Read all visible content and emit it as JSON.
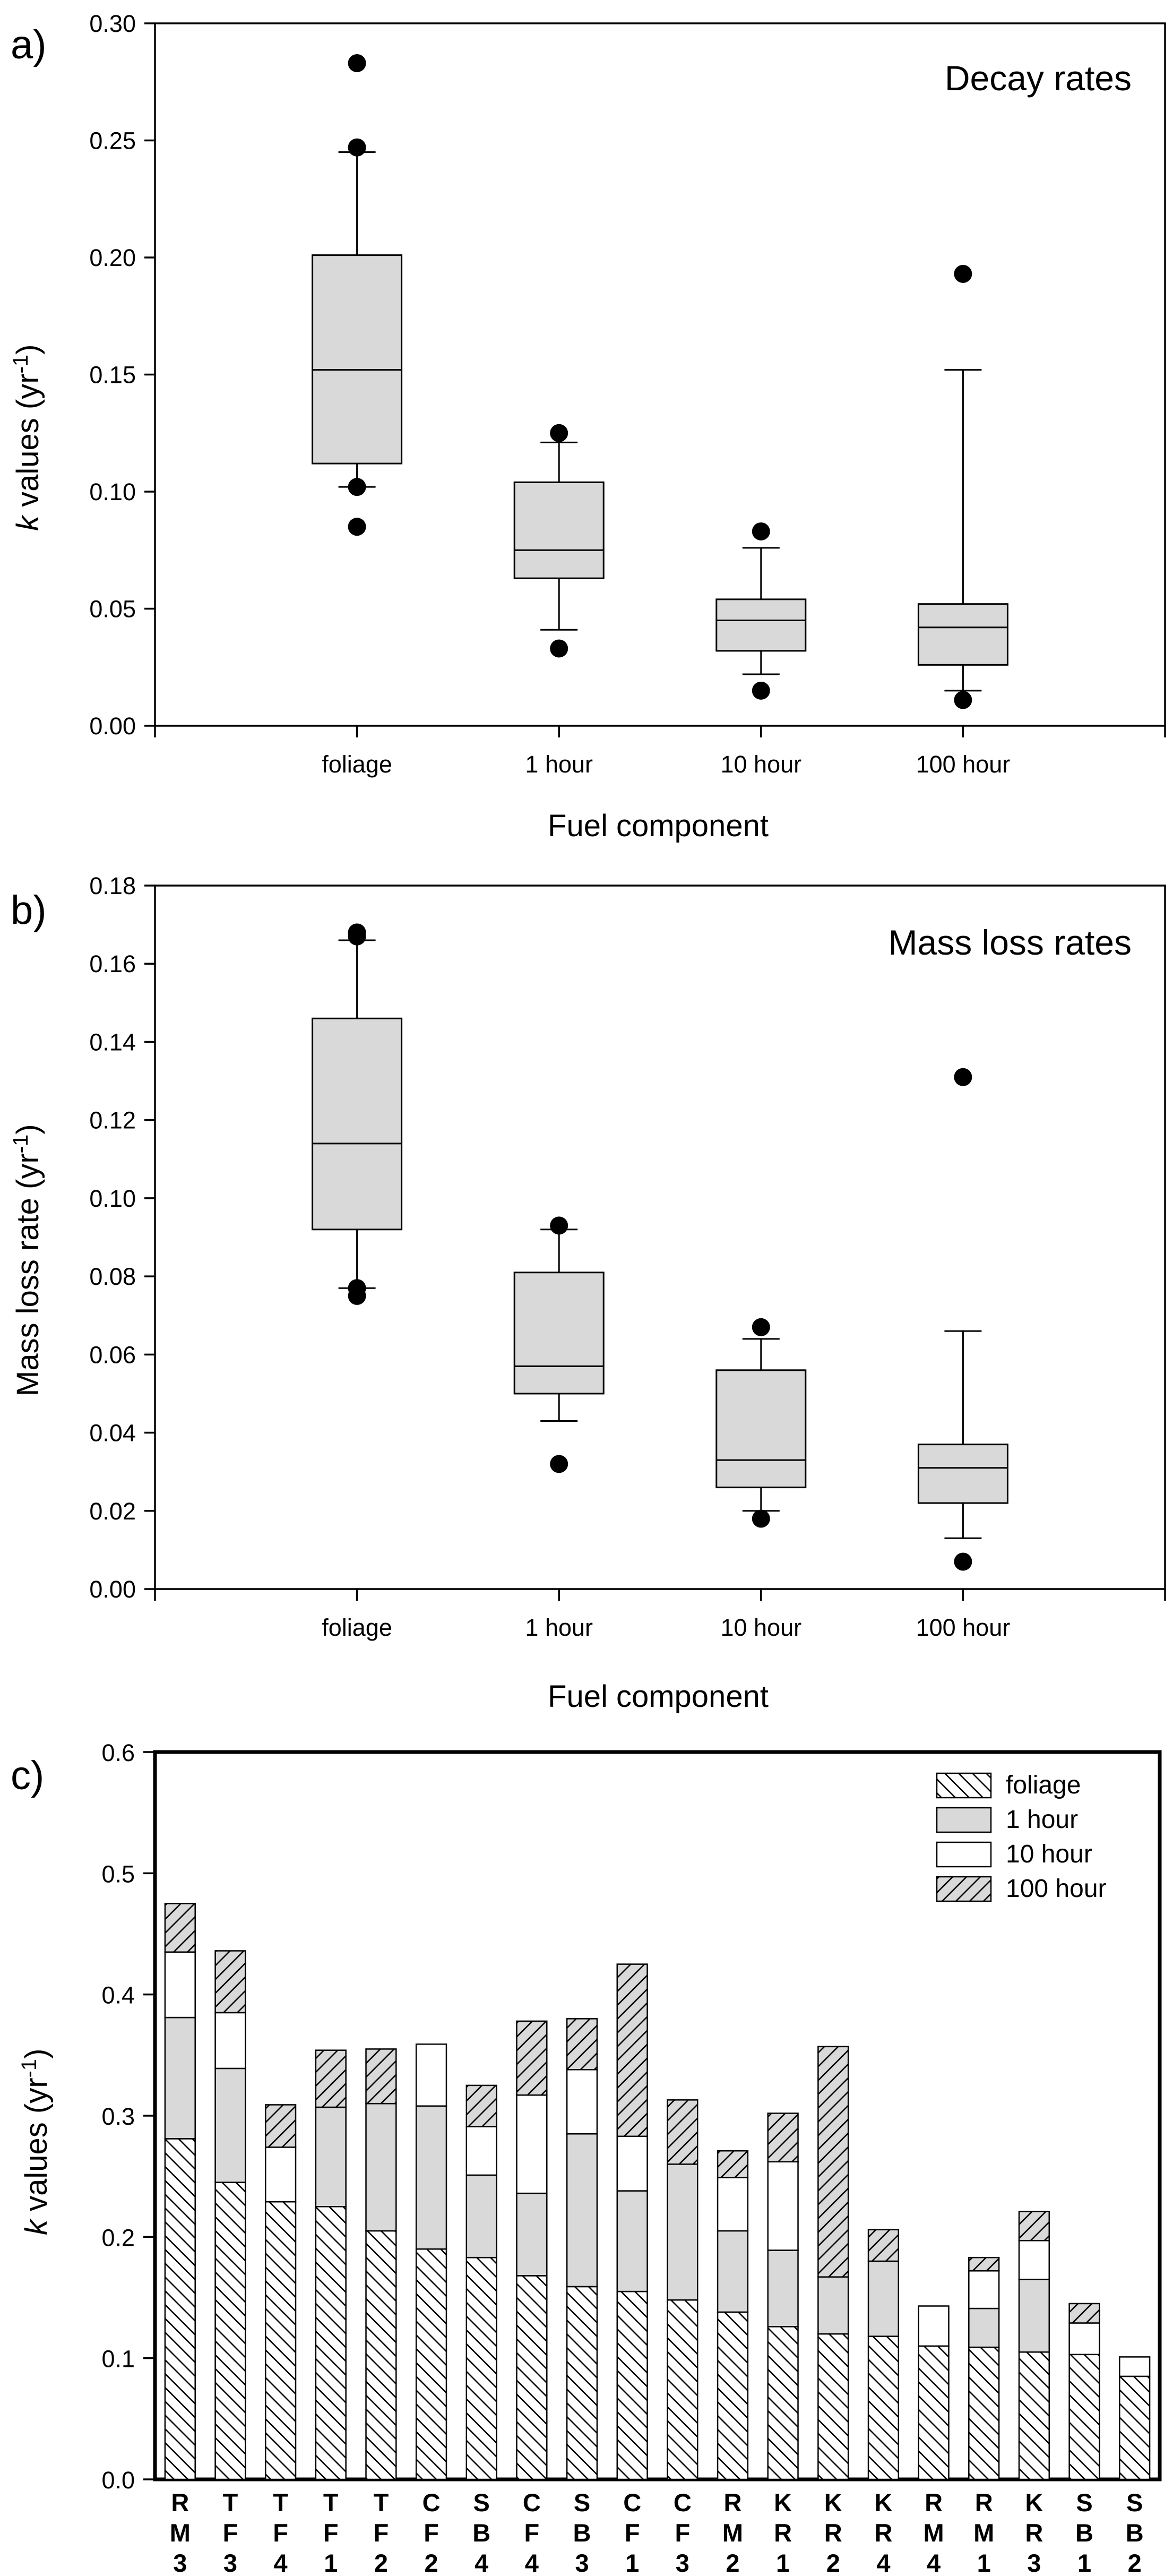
{
  "chart_data": [
    {
      "id": "a",
      "type": "box",
      "panel_label": "a)",
      "inset_title": "Decay rates",
      "xlabel": "Fuel component",
      "ylabel_italic": "k",
      "ylabel_rest": " values (",
      "ylabel_unit": "yr",
      "ylabel_exp": "-1",
      "ylabel_close": ")",
      "ylim": [
        0,
        0.3
      ],
      "yticks": [
        "0.00",
        "0.05",
        "0.10",
        "0.15",
        "0.20",
        "0.25",
        "0.30"
      ],
      "categories": [
        "foliage",
        "1 hour",
        "10 hour",
        "100 hour"
      ],
      "boxes": [
        {
          "whisker_low": 0.102,
          "q1": 0.112,
          "median": 0.152,
          "q3": 0.201,
          "whisker_high": 0.245,
          "outliers": [
            0.085,
            0.102,
            0.247,
            0.283
          ]
        },
        {
          "whisker_low": 0.041,
          "q1": 0.063,
          "median": 0.075,
          "q3": 0.104,
          "whisker_high": 0.121,
          "outliers": [
            0.033,
            0.125
          ]
        },
        {
          "whisker_low": 0.022,
          "q1": 0.032,
          "median": 0.045,
          "q3": 0.054,
          "whisker_high": 0.076,
          "outliers": [
            0.015,
            0.083
          ]
        },
        {
          "whisker_low": 0.015,
          "q1": 0.026,
          "median": 0.042,
          "q3": 0.052,
          "whisker_high": 0.152,
          "outliers": [
            0.011,
            0.193
          ]
        }
      ]
    },
    {
      "id": "b",
      "type": "box",
      "panel_label": "b)",
      "inset_title": "Mass loss rates",
      "xlabel": "Fuel component",
      "ylabel_italic": "",
      "ylabel_rest": "Mass loss rate (",
      "ylabel_unit": "yr",
      "ylabel_exp": "-1",
      "ylabel_close": ")",
      "ylim": [
        0,
        0.18
      ],
      "yticks": [
        "0.00",
        "0.02",
        "0.04",
        "0.06",
        "0.08",
        "0.10",
        "0.12",
        "0.14",
        "0.16",
        "0.18"
      ],
      "categories": [
        "foliage",
        "1 hour",
        "10 hour",
        "100 hour"
      ],
      "boxes": [
        {
          "whisker_low": 0.077,
          "q1": 0.092,
          "median": 0.114,
          "q3": 0.146,
          "whisker_high": 0.166,
          "outliers": [
            0.075,
            0.077,
            0.167,
            0.168
          ]
        },
        {
          "whisker_low": 0.043,
          "q1": 0.05,
          "median": 0.057,
          "q3": 0.081,
          "whisker_high": 0.092,
          "outliers": [
            0.032,
            0.093
          ]
        },
        {
          "whisker_low": 0.02,
          "q1": 0.026,
          "median": 0.033,
          "q3": 0.056,
          "whisker_high": 0.064,
          "outliers": [
            0.018,
            0.067
          ]
        },
        {
          "whisker_low": 0.013,
          "q1": 0.022,
          "median": 0.031,
          "q3": 0.037,
          "whisker_high": 0.066,
          "outliers": [
            0.007,
            0.131
          ]
        }
      ]
    },
    {
      "id": "c",
      "type": "stacked-bar",
      "panel_label": "c)",
      "xlabel": "",
      "ylabel_italic": "k",
      "ylabel_rest": " values (",
      "ylabel_unit": "yr",
      "ylabel_exp": "-1",
      "ylabel_close": ")",
      "ylim": [
        0,
        0.6
      ],
      "yticks": [
        "0.0",
        "0.1",
        "0.2",
        "0.3",
        "0.4",
        "0.5",
        "0.6"
      ],
      "legend_position": "top-right",
      "categories": [
        [
          "R",
          "M",
          "3"
        ],
        [
          "T",
          "F",
          "3"
        ],
        [
          "T",
          "F",
          "4"
        ],
        [
          "T",
          "F",
          "1"
        ],
        [
          "T",
          "F",
          "2"
        ],
        [
          "C",
          "F",
          "2"
        ],
        [
          "S",
          "B",
          "4"
        ],
        [
          "C",
          "F",
          "4"
        ],
        [
          "S",
          "B",
          "3"
        ],
        [
          "C",
          "F",
          "1"
        ],
        [
          "C",
          "F",
          "3"
        ],
        [
          "R",
          "M",
          "2"
        ],
        [
          "K",
          "R",
          "1"
        ],
        [
          "K",
          "R",
          "2"
        ],
        [
          "K",
          "R",
          "4"
        ],
        [
          "R",
          "M",
          "4"
        ],
        [
          "R",
          "M",
          "1"
        ],
        [
          "K",
          "R",
          "3"
        ],
        [
          "S",
          "B",
          "1"
        ],
        [
          "S",
          "B",
          "2"
        ]
      ],
      "series": [
        {
          "name": "foliage",
          "pattern": "back-hatch",
          "color": "#ffffff",
          "values": [
            0.281,
            0.245,
            0.229,
            0.225,
            0.205,
            0.19,
            0.183,
            0.168,
            0.159,
            0.155,
            0.148,
            0.138,
            0.126,
            0.12,
            0.118,
            0.11,
            0.109,
            0.105,
            0.103,
            0.085
          ]
        },
        {
          "name": "1 hour",
          "pattern": "solid",
          "color": "#d9d9d9",
          "values": [
            0.1,
            0.094,
            0.0,
            0.082,
            0.105,
            0.118,
            0.068,
            0.068,
            0.126,
            0.083,
            0.112,
            0.067,
            0.063,
            0.047,
            0.062,
            0.0,
            0.032,
            0.06,
            0.0,
            0.0
          ]
        },
        {
          "name": "10 hour",
          "pattern": "solid",
          "color": "#ffffff",
          "values": [
            0.054,
            0.046,
            0.045,
            0.0,
            0.0,
            0.051,
            0.04,
            0.081,
            0.053,
            0.045,
            0.0,
            0.044,
            0.073,
            0.0,
            0.0,
            0.033,
            0.031,
            0.032,
            0.026,
            0.016
          ]
        },
        {
          "name": "100 hour",
          "pattern": "fwd-hatch",
          "color": "#d9d9d9",
          "values": [
            0.04,
            0.051,
            0.035,
            0.047,
            0.045,
            0.0,
            0.034,
            0.061,
            0.042,
            0.142,
            0.053,
            0.022,
            0.04,
            0.19,
            0.026,
            0.0,
            0.011,
            0.024,
            0.016,
            0.0
          ]
        }
      ]
    }
  ]
}
